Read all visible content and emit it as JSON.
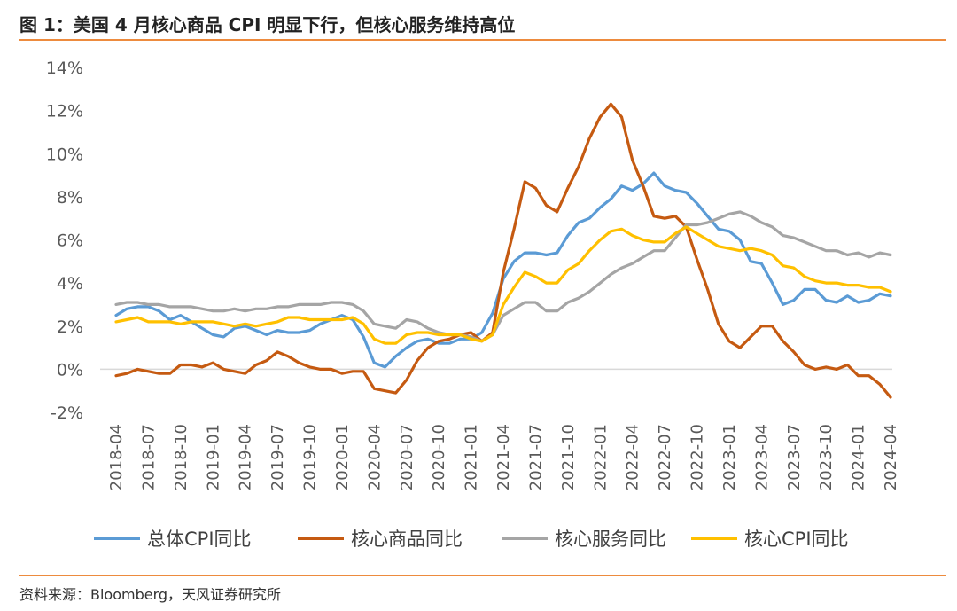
{
  "header": {
    "title": "图 1：美国 4 月核心商品 CPI 明显下行，但核心服务维持高位"
  },
  "footer": {
    "source": "资料来源：Bloomberg，天风证券研究所"
  },
  "colors": {
    "rule": "#ED8B3E",
    "axis": "#D9D9D9",
    "tick_text": "#595959"
  },
  "chart_data": {
    "type": "line",
    "ylim": [
      -2,
      14
    ],
    "y_ticks": [
      "-2%",
      "0%",
      "2%",
      "4%",
      "6%",
      "8%",
      "10%",
      "12%",
      "14%"
    ],
    "y_tick_values": [
      -2,
      0,
      2,
      4,
      6,
      8,
      10,
      12,
      14
    ],
    "x_ticks": [
      "2018-04",
      "2018-07",
      "2018-10",
      "2019-01",
      "2019-04",
      "2019-07",
      "2019-10",
      "2020-01",
      "2020-04",
      "2020-07",
      "2020-10",
      "2021-01",
      "2021-04",
      "2021-07",
      "2021-10",
      "2022-01",
      "2022-04",
      "2022-07",
      "2022-10",
      "2023-01",
      "2023-04",
      "2023-07",
      "2023-10",
      "2024-01",
      "2024-04"
    ],
    "x": [
      "2018-04",
      "2018-05",
      "2018-06",
      "2018-07",
      "2018-08",
      "2018-09",
      "2018-10",
      "2018-11",
      "2018-12",
      "2019-01",
      "2019-02",
      "2019-03",
      "2019-04",
      "2019-05",
      "2019-06",
      "2019-07",
      "2019-08",
      "2019-09",
      "2019-10",
      "2019-11",
      "2019-12",
      "2020-01",
      "2020-02",
      "2020-03",
      "2020-04",
      "2020-05",
      "2020-06",
      "2020-07",
      "2020-08",
      "2020-09",
      "2020-10",
      "2020-11",
      "2020-12",
      "2021-01",
      "2021-02",
      "2021-03",
      "2021-04",
      "2021-05",
      "2021-06",
      "2021-07",
      "2021-08",
      "2021-09",
      "2021-10",
      "2021-11",
      "2021-12",
      "2022-01",
      "2022-02",
      "2022-03",
      "2022-04",
      "2022-05",
      "2022-06",
      "2022-07",
      "2022-08",
      "2022-09",
      "2022-10",
      "2022-11",
      "2022-12",
      "2023-01",
      "2023-02",
      "2023-03",
      "2023-04",
      "2023-05",
      "2023-06",
      "2023-07",
      "2023-08",
      "2023-09",
      "2023-10",
      "2023-11",
      "2023-12",
      "2024-01",
      "2024-02",
      "2024-03",
      "2024-04"
    ],
    "legend_position": "bottom",
    "grid": false,
    "series": [
      {
        "name": "总体CPI同比",
        "color": "#5B9BD5",
        "values": [
          2.5,
          2.8,
          2.9,
          2.9,
          2.7,
          2.3,
          2.5,
          2.2,
          1.9,
          1.6,
          1.5,
          1.9,
          2.0,
          1.8,
          1.6,
          1.8,
          1.7,
          1.7,
          1.8,
          2.1,
          2.3,
          2.5,
          2.3,
          1.5,
          0.3,
          0.1,
          0.6,
          1.0,
          1.3,
          1.4,
          1.2,
          1.2,
          1.4,
          1.4,
          1.7,
          2.6,
          4.2,
          5.0,
          5.4,
          5.4,
          5.3,
          5.4,
          6.2,
          6.8,
          7.0,
          7.5,
          7.9,
          8.5,
          8.3,
          8.6,
          9.1,
          8.5,
          8.3,
          8.2,
          7.7,
          7.1,
          6.5,
          6.4,
          6.0,
          5.0,
          4.9,
          4.0,
          3.0,
          3.2,
          3.7,
          3.7,
          3.2,
          3.1,
          3.4,
          3.1,
          3.2,
          3.5,
          3.4
        ]
      },
      {
        "name": "核心商品同比",
        "color": "#C55A11",
        "values": [
          -0.3,
          -0.2,
          0.0,
          -0.1,
          -0.2,
          -0.2,
          0.2,
          0.2,
          0.1,
          0.3,
          0.0,
          -0.1,
          -0.2,
          0.2,
          0.4,
          0.8,
          0.6,
          0.3,
          0.1,
          0.0,
          0.0,
          -0.2,
          -0.1,
          -0.1,
          -0.9,
          -1.0,
          -1.1,
          -0.5,
          0.4,
          1.0,
          1.3,
          1.4,
          1.6,
          1.7,
          1.3,
          1.7,
          4.5,
          6.5,
          8.7,
          8.4,
          7.6,
          7.3,
          8.4,
          9.4,
          10.7,
          11.7,
          12.3,
          11.7,
          9.7,
          8.5,
          7.1,
          7.0,
          7.1,
          6.6,
          5.1,
          3.7,
          2.1,
          1.3,
          1.0,
          1.5,
          2.0,
          2.0,
          1.3,
          0.8,
          0.2,
          0.0,
          0.1,
          0.0,
          0.2,
          -0.3,
          -0.3,
          -0.7,
          -1.3
        ]
      },
      {
        "name": "核心服务同比",
        "color": "#A5A5A5",
        "values": [
          3.0,
          3.1,
          3.1,
          3.0,
          3.0,
          2.9,
          2.9,
          2.9,
          2.8,
          2.7,
          2.7,
          2.8,
          2.7,
          2.8,
          2.8,
          2.9,
          2.9,
          3.0,
          3.0,
          3.0,
          3.1,
          3.1,
          3.0,
          2.7,
          2.1,
          2.0,
          1.9,
          2.3,
          2.2,
          1.9,
          1.7,
          1.6,
          1.6,
          1.5,
          1.3,
          1.6,
          2.5,
          2.8,
          3.1,
          3.1,
          2.7,
          2.7,
          3.1,
          3.3,
          3.6,
          4.0,
          4.4,
          4.7,
          4.9,
          5.2,
          5.5,
          5.5,
          6.1,
          6.7,
          6.7,
          6.8,
          7.0,
          7.2,
          7.3,
          7.1,
          6.8,
          6.6,
          6.2,
          6.1,
          5.9,
          5.7,
          5.5,
          5.5,
          5.3,
          5.4,
          5.2,
          5.4,
          5.3
        ]
      },
      {
        "name": "核心CPI同比",
        "color": "#FFC000",
        "values": [
          2.2,
          2.3,
          2.4,
          2.2,
          2.2,
          2.2,
          2.1,
          2.2,
          2.2,
          2.2,
          2.1,
          2.0,
          2.1,
          2.0,
          2.1,
          2.2,
          2.4,
          2.4,
          2.3,
          2.3,
          2.3,
          2.3,
          2.4,
          2.1,
          1.4,
          1.2,
          1.2,
          1.6,
          1.7,
          1.7,
          1.6,
          1.6,
          1.6,
          1.4,
          1.3,
          1.6,
          3.0,
          3.8,
          4.5,
          4.3,
          4.0,
          4.0,
          4.6,
          4.9,
          5.5,
          6.0,
          6.4,
          6.5,
          6.2,
          6.0,
          5.9,
          5.9,
          6.3,
          6.6,
          6.3,
          6.0,
          5.7,
          5.6,
          5.5,
          5.6,
          5.5,
          5.3,
          4.8,
          4.7,
          4.3,
          4.1,
          4.0,
          4.0,
          3.9,
          3.9,
          3.8,
          3.8,
          3.6
        ]
      }
    ]
  }
}
